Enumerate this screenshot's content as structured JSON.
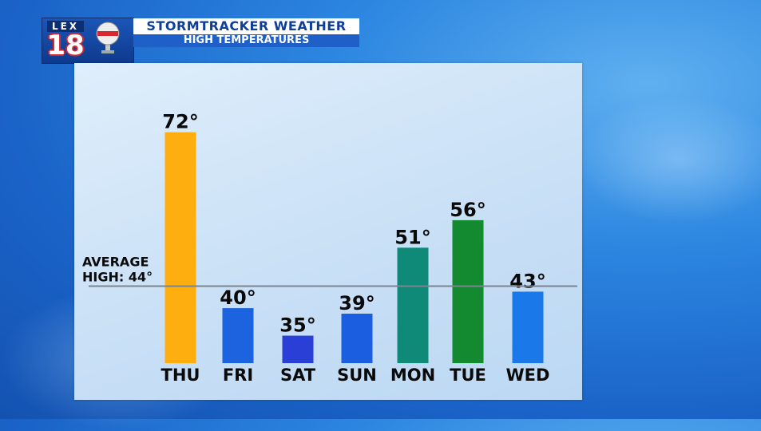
{
  "header": {
    "logo_lex": "LEX",
    "logo_number": "18",
    "title": "STORMTRACKER WEATHER",
    "subtitle": "HIGH TEMPERATURES"
  },
  "chart_data": {
    "type": "bar",
    "title": "HIGH TEMPERATURES",
    "categories": [
      "THU",
      "FRI",
      "SAT",
      "SUN",
      "MON",
      "TUE",
      "WED"
    ],
    "values": [
      72,
      40,
      35,
      39,
      51,
      56,
      43
    ],
    "value_labels": [
      "72°",
      "40°",
      "35°",
      "39°",
      "51°",
      "56°",
      "43°"
    ],
    "bar_colors": [
      "#ffae0f",
      "#1c63e0",
      "#2a3fd6",
      "#1c5ee0",
      "#0f8a78",
      "#148a30",
      "#1a78e8"
    ],
    "reference_line": {
      "value": 44,
      "label_line1": "AVERAGE",
      "label_line2": "HIGH: 44°",
      "color": "#7a8590"
    },
    "ylim": [
      30,
      75
    ],
    "grid": false,
    "xlabel": "",
    "ylabel": ""
  }
}
